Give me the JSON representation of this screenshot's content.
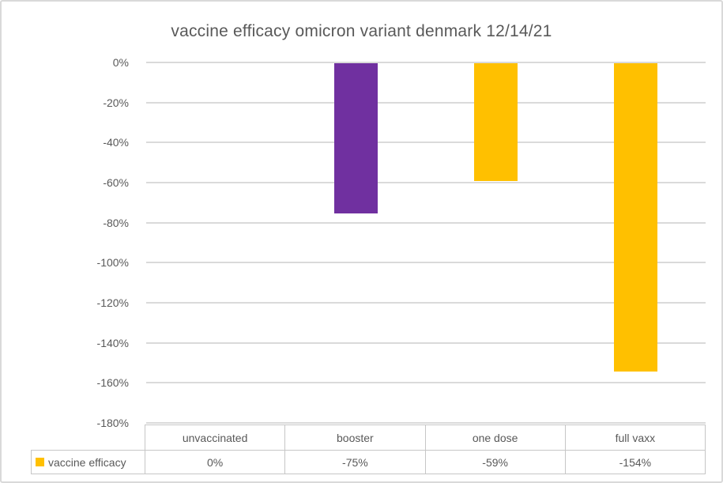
{
  "title": "vaccine efficacy omicron variant denmark 12/14/21",
  "colors": {
    "gold": "#FFC000",
    "purple": "#7030A0",
    "text": "#595959",
    "gridline": "#DADADA",
    "table_border": "#C6C6C6",
    "chart_border": "#D9D9D9"
  },
  "chart_data": {
    "type": "bar",
    "title": "vaccine efficacy omicron variant denmark 12/14/21",
    "categories": [
      "unvaccinated",
      "booster",
      "one dose",
      "full vaxx"
    ],
    "series": [
      {
        "name": "vaccine efficacy",
        "values": [
          0,
          -75,
          -59,
          -154
        ]
      }
    ],
    "bar_colors": [
      "#FFC000",
      "#7030A0",
      "#FFC000",
      "#FFC000"
    ],
    "xlabel": "",
    "ylabel": "",
    "ylim": [
      -180,
      0
    ],
    "ytick_step": 20,
    "ytick_labels": [
      "0%",
      "-20%",
      "-40%",
      "-60%",
      "-80%",
      "-100%",
      "-120%",
      "-140%",
      "-160%",
      "-180%"
    ],
    "grid": true,
    "legend_position": "bottom-table-left"
  },
  "table": {
    "legend_label": "vaccine efficacy",
    "headers": [
      "unvaccinated",
      "booster",
      "one dose",
      "full vaxx"
    ],
    "values": [
      "0%",
      "-75%",
      "-59%",
      "-154%"
    ]
  }
}
